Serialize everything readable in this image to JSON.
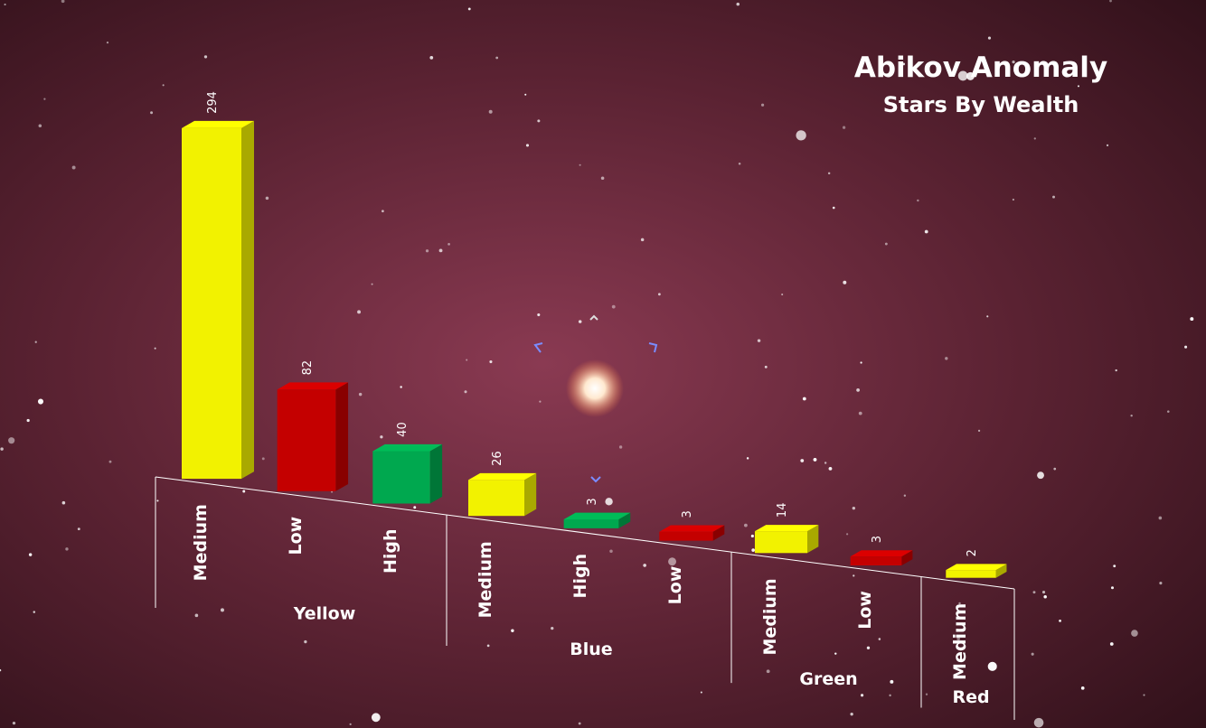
{
  "chart_data": {
    "type": "bar",
    "title": "Abikov Anomaly",
    "subtitle": "Stars By Wealth",
    "groups": [
      {
        "name": "Yellow",
        "categories": [
          "Medium",
          "Low",
          "High"
        ],
        "values": [
          294,
          82,
          40
        ],
        "colors": [
          "#f2f200",
          "#c40000",
          "#00a84f"
        ]
      },
      {
        "name": "Blue",
        "categories": [
          "Medium",
          "High",
          "Low"
        ],
        "values": [
          26,
          3,
          3
        ],
        "colors": [
          "#f2f200",
          "#00a84f",
          "#c40000"
        ]
      },
      {
        "name": "Green",
        "categories": [
          "Medium",
          "Low"
        ],
        "values": [
          14,
          3
        ],
        "colors": [
          "#f2f200",
          "#c40000"
        ]
      },
      {
        "name": "Red",
        "categories": [
          "Medium"
        ],
        "values": [
          2
        ],
        "colors": [
          "#f2f200"
        ]
      }
    ]
  }
}
